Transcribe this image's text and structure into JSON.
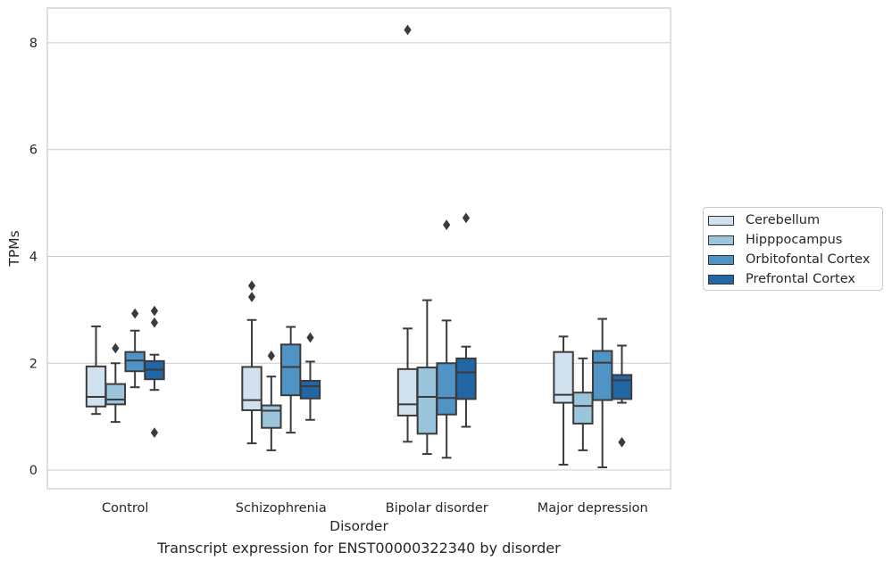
{
  "chart_data": {
    "type": "box",
    "xlabel": "Disorder",
    "ylabel": "TPMs",
    "ylim": [
      -0.35,
      8.65
    ],
    "yticks": [
      0,
      2,
      4,
      6,
      8
    ],
    "grid": true,
    "categories": [
      "Control",
      "Schizophrenia",
      "Bipolar disorder",
      "Major depression"
    ],
    "series": [
      {
        "name": "Cerebellum",
        "color": "#d1e1f0",
        "boxes": [
          {
            "whisker_low": 1.05,
            "q1": 1.19,
            "median": 1.37,
            "q3": 1.94,
            "whisker_high": 2.69,
            "outliers": []
          },
          {
            "whisker_low": 0.5,
            "q1": 1.12,
            "median": 1.31,
            "q3": 1.93,
            "whisker_high": 2.81,
            "outliers": [
              3.24,
              3.45
            ]
          },
          {
            "whisker_low": 0.53,
            "q1": 1.02,
            "median": 1.23,
            "q3": 1.89,
            "whisker_high": 2.65,
            "outliers": [
              8.24
            ]
          },
          {
            "whisker_low": 0.1,
            "q1": 1.26,
            "median": 1.41,
            "q3": 2.21,
            "whisker_high": 2.5,
            "outliers": []
          }
        ]
      },
      {
        "name": "Hipppocampus",
        "color": "#9ac5dd",
        "boxes": [
          {
            "whisker_low": 0.9,
            "q1": 1.23,
            "median": 1.32,
            "q3": 1.61,
            "whisker_high": 2.0,
            "outliers": [
              2.28
            ]
          },
          {
            "whisker_low": 0.37,
            "q1": 0.79,
            "median": 1.11,
            "q3": 1.21,
            "whisker_high": 1.75,
            "outliers": [
              2.14
            ]
          },
          {
            "whisker_low": 0.3,
            "q1": 0.68,
            "median": 1.37,
            "q3": 1.92,
            "whisker_high": 3.18,
            "outliers": []
          },
          {
            "whisker_low": 0.37,
            "q1": 0.87,
            "median": 1.2,
            "q3": 1.45,
            "whisker_high": 2.09,
            "outliers": []
          }
        ]
      },
      {
        "name": "Orbitofontal Cortex",
        "color": "#4f94c4",
        "boxes": [
          {
            "whisker_low": 1.55,
            "q1": 1.85,
            "median": 2.05,
            "q3": 2.21,
            "whisker_high": 2.61,
            "outliers": [
              2.93
            ]
          },
          {
            "whisker_low": 0.7,
            "q1": 1.4,
            "median": 1.93,
            "q3": 2.35,
            "whisker_high": 2.68,
            "outliers": []
          },
          {
            "whisker_low": 0.23,
            "q1": 1.04,
            "median": 1.35,
            "q3": 2.0,
            "whisker_high": 2.8,
            "outliers": [
              4.59
            ]
          },
          {
            "whisker_low": 0.05,
            "q1": 1.31,
            "median": 2.01,
            "q3": 2.23,
            "whisker_high": 2.83,
            "outliers": []
          }
        ]
      },
      {
        "name": "Prefrontal Cortex",
        "color": "#2266a5",
        "boxes": [
          {
            "whisker_low": 1.5,
            "q1": 1.7,
            "median": 1.88,
            "q3": 2.04,
            "whisker_high": 2.16,
            "outliers": [
              2.76,
              2.98,
              0.7
            ]
          },
          {
            "whisker_low": 0.94,
            "q1": 1.34,
            "median": 1.57,
            "q3": 1.67,
            "whisker_high": 2.03,
            "outliers": [
              2.48
            ]
          },
          {
            "whisker_low": 0.81,
            "q1": 1.33,
            "median": 1.83,
            "q3": 2.09,
            "whisker_high": 2.31,
            "outliers": [
              4.72
            ]
          },
          {
            "whisker_low": 1.26,
            "q1": 1.33,
            "median": 1.68,
            "q3": 1.78,
            "whisker_high": 2.33,
            "outliers": [
              0.52
            ]
          }
        ]
      }
    ],
    "legend": {
      "placement": "right-center"
    }
  },
  "caption": "Transcript expression for ENST00000322340 by disorder"
}
